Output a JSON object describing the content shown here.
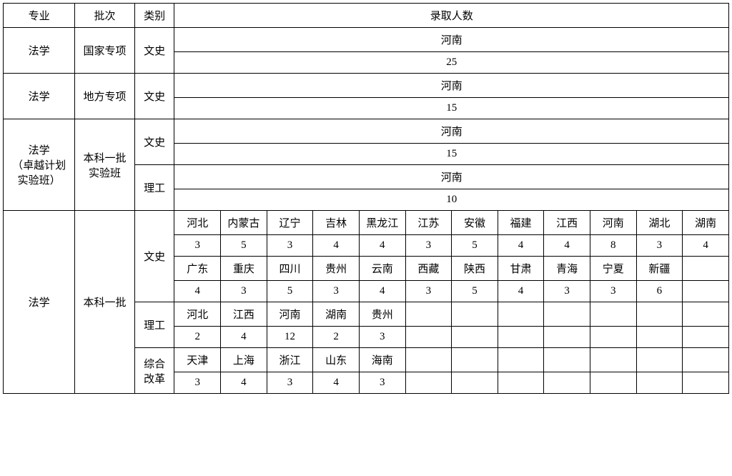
{
  "headers": {
    "major": "专业",
    "batch": "批次",
    "category": "类别",
    "count": "录取人数"
  },
  "rows": [
    {
      "major": "法学",
      "batch": "国家专项",
      "category": "文史",
      "province": "河南",
      "value": "25"
    },
    {
      "major": "法学",
      "batch": "地方专项",
      "category": "文史",
      "province": "河南",
      "value": "15"
    },
    {
      "major": "法学\n（卓越计划\n实验班）",
      "batch": "本科一批\n实验班",
      "sub": [
        {
          "category": "文史",
          "province": "河南",
          "value": "15"
        },
        {
          "category": "理工",
          "province": "河南",
          "value": "10"
        }
      ]
    }
  ],
  "big": {
    "major": "法学",
    "batch": "本科一批",
    "wenshi": {
      "category": "文史",
      "row1_prov": [
        "河北",
        "内蒙古",
        "辽宁",
        "吉林",
        "黑龙江",
        "江苏",
        "安徽",
        "福建",
        "江西",
        "河南",
        "湖北",
        "湖南"
      ],
      "row1_val": [
        "3",
        "5",
        "3",
        "4",
        "4",
        "3",
        "5",
        "4",
        "4",
        "8",
        "3",
        "4"
      ],
      "row2_prov": [
        "广东",
        "重庆",
        "四川",
        "贵州",
        "云南",
        "西藏",
        "陕西",
        "甘肃",
        "青海",
        "宁夏",
        "新疆",
        ""
      ],
      "row2_val": [
        "4",
        "3",
        "5",
        "3",
        "4",
        "3",
        "5",
        "4",
        "3",
        "3",
        "6",
        ""
      ]
    },
    "ligong": {
      "category": "理工",
      "prov": [
        "河北",
        "江西",
        "河南",
        "湖南",
        "贵州",
        "",
        "",
        "",
        "",
        "",
        "",
        ""
      ],
      "val": [
        "2",
        "4",
        "12",
        "2",
        "3",
        "",
        "",
        "",
        "",
        "",
        "",
        ""
      ]
    },
    "zonghe": {
      "category": "综合\n改革",
      "prov": [
        "天津",
        "上海",
        "浙江",
        "山东",
        "海南",
        "",
        "",
        "",
        "",
        "",
        "",
        ""
      ],
      "val": [
        "3",
        "4",
        "3",
        "4",
        "3",
        "",
        "",
        "",
        "",
        "",
        "",
        ""
      ]
    }
  },
  "style": {
    "border_color": "#000000",
    "background": "#ffffff",
    "text_color": "#000000",
    "font_family": "SimSun",
    "header_fontsize": 15,
    "cell_fontsize": 15
  }
}
